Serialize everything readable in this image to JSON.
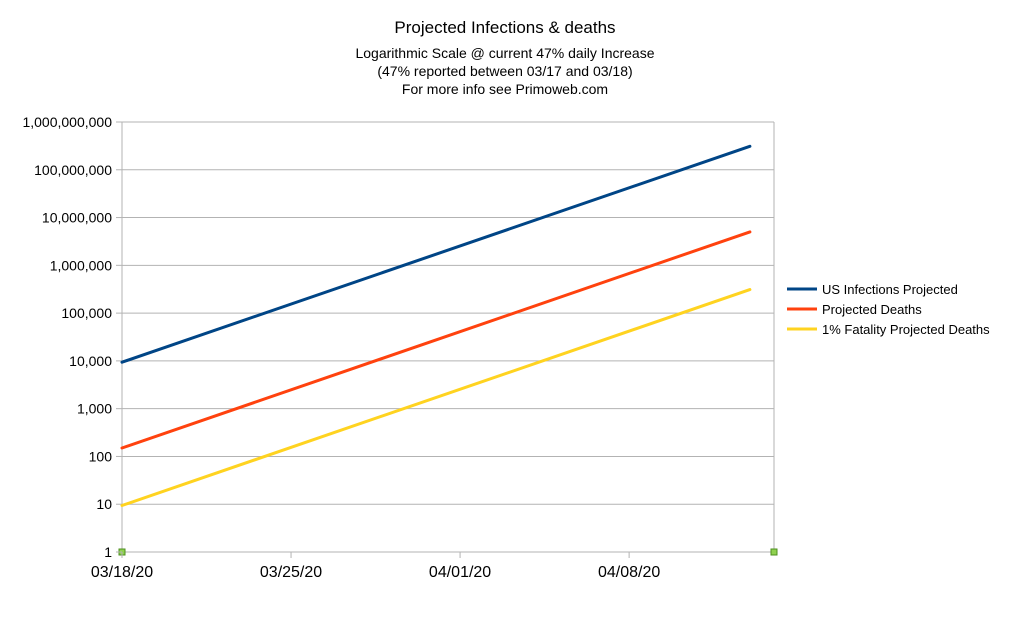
{
  "chart_data": {
    "type": "line",
    "title": "Projected Infections & deaths",
    "subtitle": [
      "Logarithmic Scale @ current 47% daily Increase",
      "(47% reported between 03/17 and 03/18)",
      "For more info see Primoweb.com"
    ],
    "yscale": "log",
    "ylim": [
      1,
      1000000000
    ],
    "yticks": [
      1,
      10,
      100,
      1000,
      10000,
      100000,
      1000000,
      10000000,
      100000000,
      1000000000
    ],
    "ytick_labels": [
      "1",
      "10",
      "100",
      "1,000",
      "10,000",
      "100,000",
      "1,000,000",
      "10,000,000",
      "100,000,000",
      "1,000,000,000"
    ],
    "xlim": [
      "2020-03-18",
      "2020-04-14"
    ],
    "xticks": [
      "2020-03-18",
      "2020-03-25",
      "2020-04-01",
      "2020-04-08"
    ],
    "xtick_labels": [
      "03/18/20",
      "03/25/20",
      "04/01/20",
      "04/08/20"
    ],
    "grid": true,
    "legend_position": "right",
    "series": [
      {
        "name": "US Infections Projected",
        "color": "#004586",
        "x": [
          "2020-03-18",
          "2020-04-13"
        ],
        "y": [
          9400,
          310000000
        ]
      },
      {
        "name": "Projected Deaths",
        "color": "#ff420e",
        "x": [
          "2020-03-18",
          "2020-04-13"
        ],
        "y": [
          150,
          5000000
        ]
      },
      {
        "name": "1% Fatality Projected Deaths",
        "color": "#ffd320",
        "x": [
          "2020-03-18",
          "2020-04-13"
        ],
        "y": [
          9.4,
          310000
        ]
      }
    ]
  }
}
